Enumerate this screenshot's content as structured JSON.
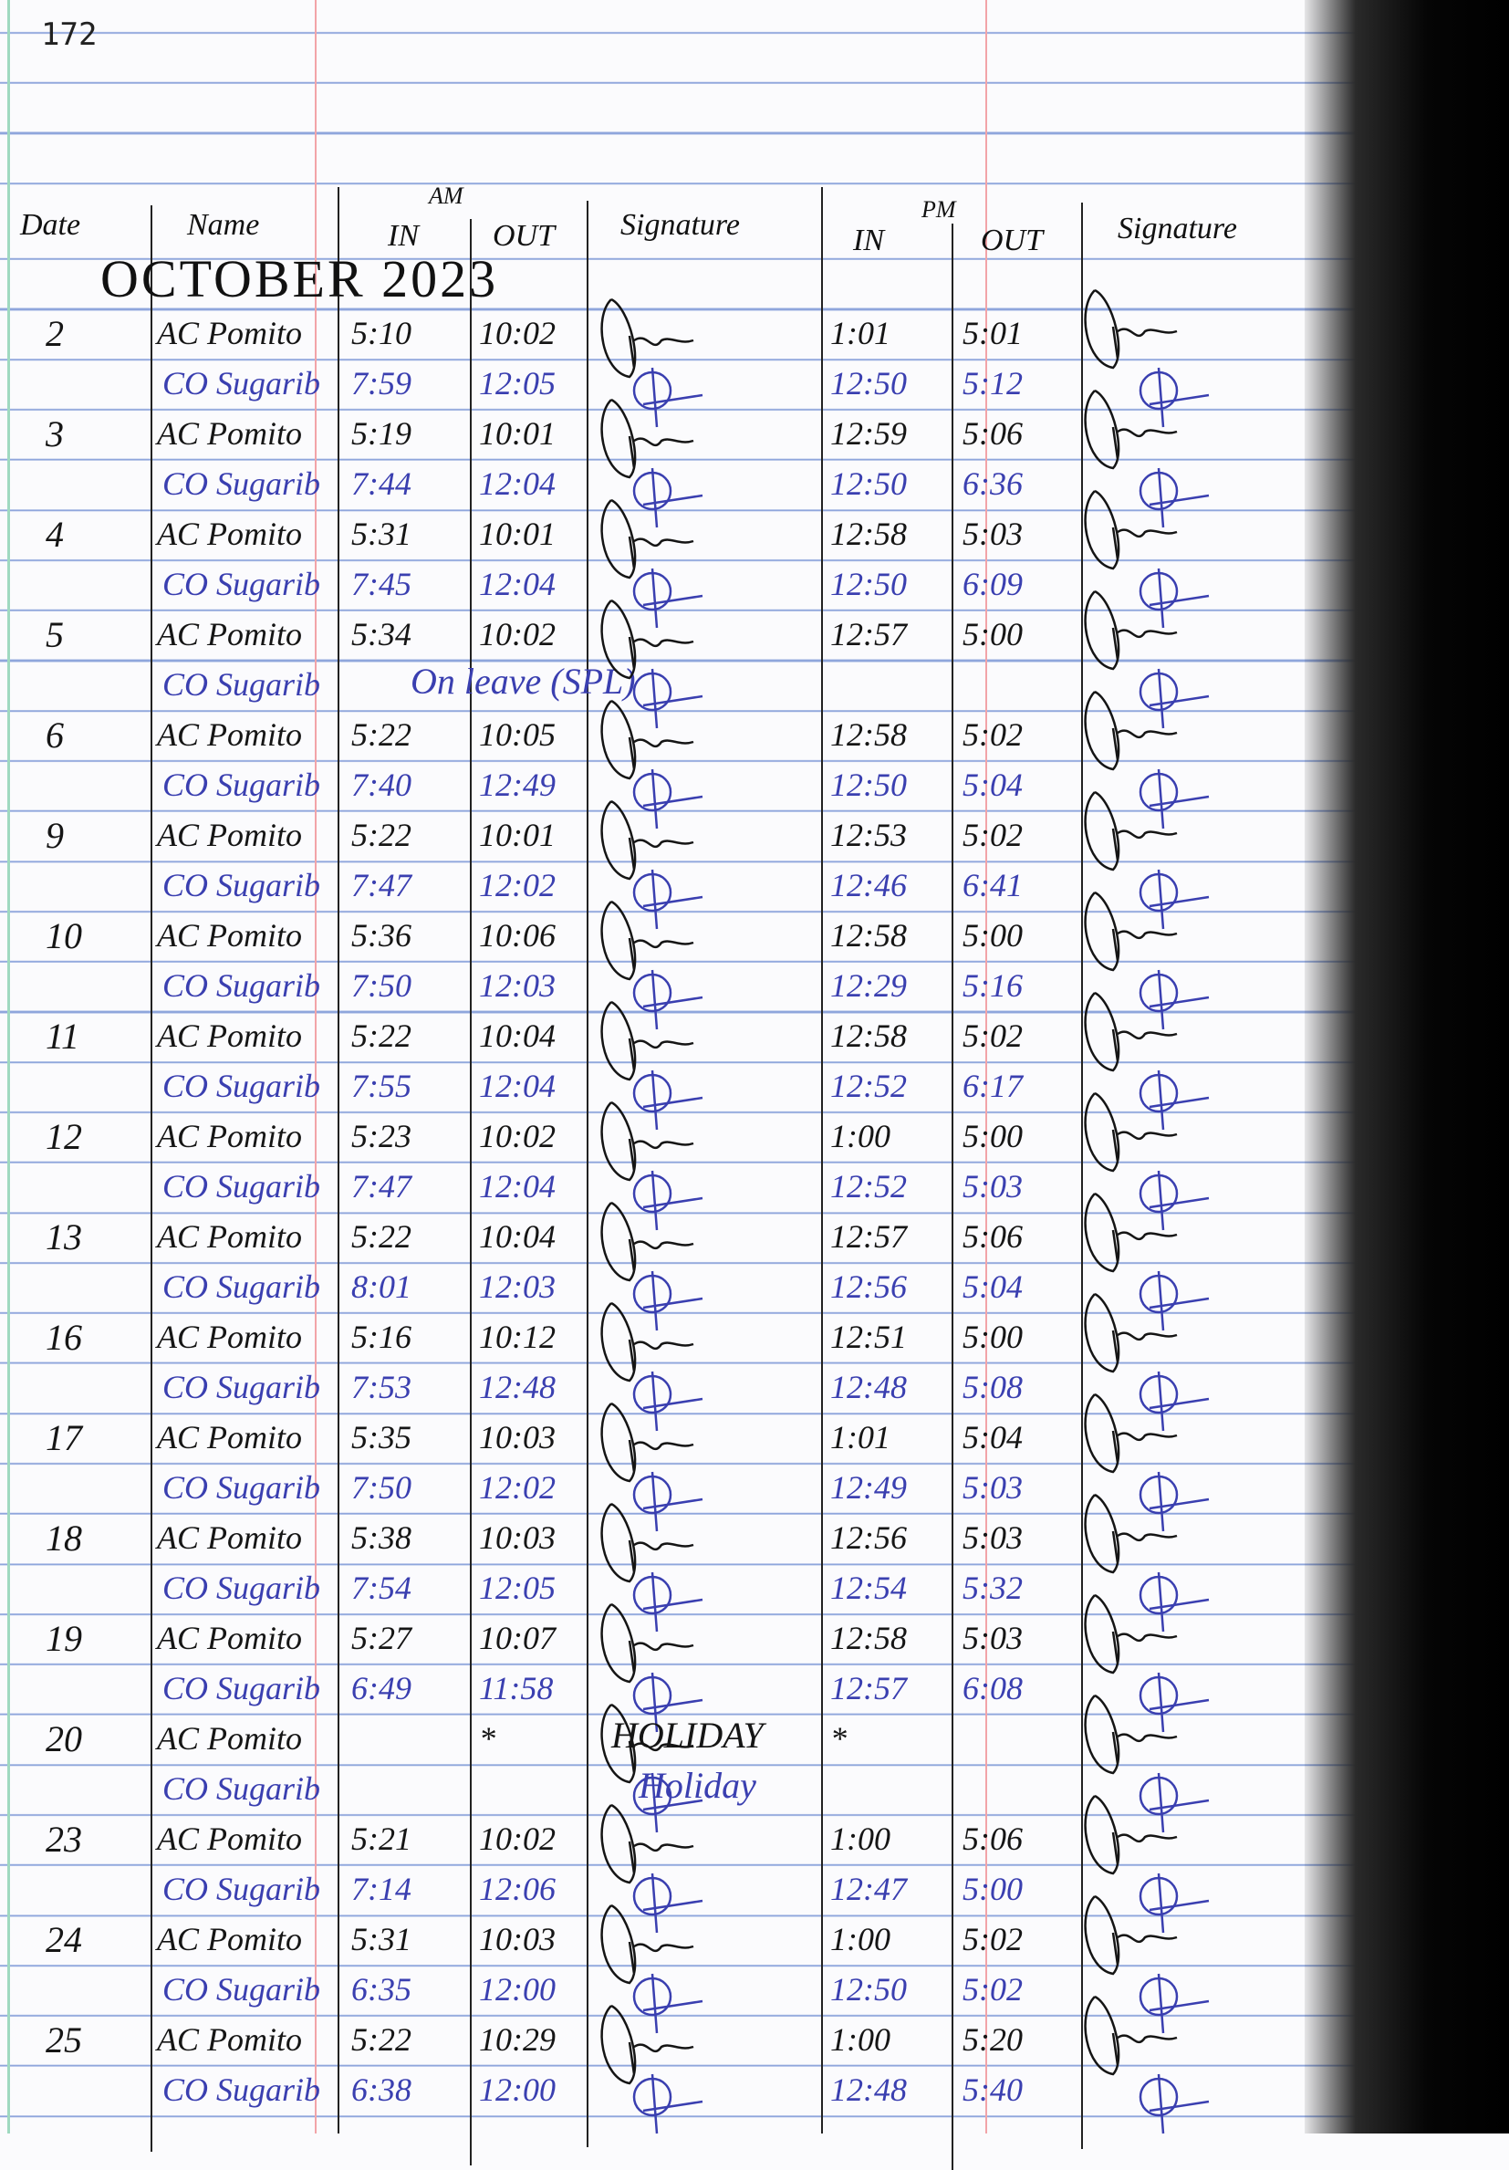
{
  "page_number": "172",
  "header": {
    "date": "Date",
    "name": "Name",
    "am": "AM",
    "am_in": "IN",
    "am_out": "OUT",
    "signature_am": "Signature",
    "pm": "PM",
    "pm_in": "IN",
    "pm_out": "OUT",
    "signature_pm": "Signature"
  },
  "month": "OCTOBER 2023",
  "ink_colors": {
    "black": "#151515",
    "blue": "#3a3fb0"
  },
  "rows": [
    {
      "date": "2",
      "a": {
        "name": "AC Pomito",
        "am_in": "5:10",
        "am_out": "10:02",
        "pm_in": "1:01",
        "pm_out": "5:01"
      },
      "b": {
        "name": "CO Sugarib",
        "am_in": "7:59",
        "am_out": "12:05",
        "pm_in": "12:50",
        "pm_out": "5:12"
      }
    },
    {
      "date": "3",
      "a": {
        "name": "AC Pomito",
        "am_in": "5:19",
        "am_out": "10:01",
        "pm_in": "12:59",
        "pm_out": "5:06"
      },
      "b": {
        "name": "CO Sugarib",
        "am_in": "7:44",
        "am_out": "12:04",
        "pm_in": "12:50",
        "pm_out": "6:36"
      }
    },
    {
      "date": "4",
      "a": {
        "name": "AC Pomito",
        "am_in": "5:31",
        "am_out": "10:01",
        "pm_in": "12:58",
        "pm_out": "5:03"
      },
      "b": {
        "name": "CO Sugarib",
        "am_in": "7:45",
        "am_out": "12:04",
        "pm_in": "12:50",
        "pm_out": "6:09"
      }
    },
    {
      "date": "5",
      "a": {
        "name": "AC Pomito",
        "am_in": "5:34",
        "am_out": "10:02",
        "pm_in": "12:57",
        "pm_out": "5:00"
      },
      "b": {
        "name": "CO Sugarib",
        "note": "On leave (SPL)"
      }
    },
    {
      "date": "6",
      "a": {
        "name": "AC Pomito",
        "am_in": "5:22",
        "am_out": "10:05",
        "pm_in": "12:58",
        "pm_out": "5:02"
      },
      "b": {
        "name": "CO Sugarib",
        "am_in": "7:40",
        "am_out": "12:49",
        "pm_in": "12:50",
        "pm_out": "5:04"
      }
    },
    {
      "date": "9",
      "a": {
        "name": "AC Pomito",
        "am_in": "5:22",
        "am_out": "10:01",
        "pm_in": "12:53",
        "pm_out": "5:02"
      },
      "b": {
        "name": "CO Sugarib",
        "am_in": "7:47",
        "am_out": "12:02",
        "pm_in": "12:46",
        "pm_out": "6:41"
      }
    },
    {
      "date": "10",
      "a": {
        "name": "AC Pomito",
        "am_in": "5:36",
        "am_out": "10:06",
        "pm_in": "12:58",
        "pm_out": "5:00"
      },
      "b": {
        "name": "CO Sugarib",
        "am_in": "7:50",
        "am_out": "12:03",
        "pm_in": "12:29",
        "pm_out": "5:16"
      }
    },
    {
      "date": "11",
      "a": {
        "name": "AC Pomito",
        "am_in": "5:22",
        "am_out": "10:04",
        "pm_in": "12:58",
        "pm_out": "5:02"
      },
      "b": {
        "name": "CO Sugarib",
        "am_in": "7:55",
        "am_out": "12:04",
        "pm_in": "12:52",
        "pm_out": "6:17"
      }
    },
    {
      "date": "12",
      "a": {
        "name": "AC Pomito",
        "am_in": "5:23",
        "am_out": "10:02",
        "pm_in": "1:00",
        "pm_out": "5:00"
      },
      "b": {
        "name": "CO Sugarib",
        "am_in": "7:47",
        "am_out": "12:04",
        "pm_in": "12:52",
        "pm_out": "5:03"
      }
    },
    {
      "date": "13",
      "a": {
        "name": "AC Pomito",
        "am_in": "5:22",
        "am_out": "10:04",
        "pm_in": "12:57",
        "pm_out": "5:06"
      },
      "b": {
        "name": "CO Sugarib",
        "am_in": "8:01",
        "am_out": "12:03",
        "pm_in": "12:56",
        "pm_out": "5:04"
      }
    },
    {
      "date": "16",
      "a": {
        "name": "AC Pomito",
        "am_in": "5:16",
        "am_out": "10:12",
        "pm_in": "12:51",
        "pm_out": "5:00"
      },
      "b": {
        "name": "CO Sugarib",
        "am_in": "7:53",
        "am_out": "12:48",
        "pm_in": "12:48",
        "pm_out": "5:08"
      }
    },
    {
      "date": "17",
      "a": {
        "name": "AC Pomito",
        "am_in": "5:35",
        "am_out": "10:03",
        "pm_in": "1:01",
        "pm_out": "5:04"
      },
      "b": {
        "name": "CO Sugarib",
        "am_in": "7:50",
        "am_out": "12:02",
        "pm_in": "12:49",
        "pm_out": "5:03"
      }
    },
    {
      "date": "18",
      "a": {
        "name": "AC Pomito",
        "am_in": "5:38",
        "am_out": "10:03",
        "pm_in": "12:56",
        "pm_out": "5:03"
      },
      "b": {
        "name": "CO Sugarib",
        "am_in": "7:54",
        "am_out": "12:05",
        "pm_in": "12:54",
        "pm_out": "5:32"
      }
    },
    {
      "date": "19",
      "a": {
        "name": "AC Pomito",
        "am_in": "5:27",
        "am_out": "10:07",
        "pm_in": "12:58",
        "pm_out": "5:03"
      },
      "b": {
        "name": "CO Sugarib",
        "am_in": "6:49",
        "am_out": "11:58",
        "pm_in": "12:57",
        "pm_out": "6:08"
      }
    },
    {
      "date": "20",
      "a": {
        "name": "AC Pomito",
        "am_out": "*",
        "note": "HOLIDAY",
        "pm_in": "*"
      },
      "b": {
        "name": "CO Sugarib",
        "note": "Holiday"
      }
    },
    {
      "date": "23",
      "a": {
        "name": "AC Pomito",
        "am_in": "5:21",
        "am_out": "10:02",
        "pm_in": "1:00",
        "pm_out": "5:06"
      },
      "b": {
        "name": "CO Sugarib",
        "am_in": "7:14",
        "am_out": "12:06",
        "pm_in": "12:47",
        "pm_out": "5:00"
      }
    },
    {
      "date": "24",
      "a": {
        "name": "AC Pomito",
        "am_in": "5:31",
        "am_out": "10:03",
        "pm_in": "1:00",
        "pm_out": "5:02"
      },
      "b": {
        "name": "CO Sugarib",
        "am_in": "6:35",
        "am_out": "12:00",
        "pm_in": "12:50",
        "pm_out": "5:02"
      }
    },
    {
      "date": "25",
      "a": {
        "name": "AC Pomito",
        "am_in": "5:22",
        "am_out": "10:29",
        "pm_in": "1:00",
        "pm_out": "5:20"
      },
      "b": {
        "name": "CO Sugarib",
        "am_in": "6:38",
        "am_out": "12:00",
        "pm_in": "12:48",
        "pm_out": "5:40"
      }
    }
  ]
}
